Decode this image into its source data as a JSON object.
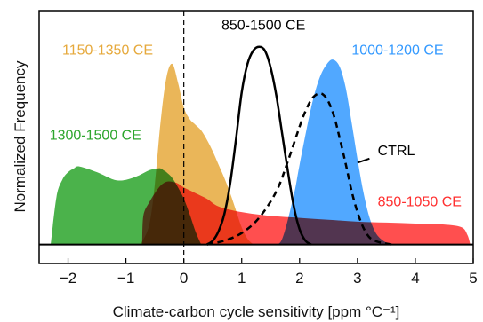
{
  "chart_data": {
    "type": "area",
    "xlabel": "Climate-carbon cycle sensitivity [ppm °C⁻¹]",
    "ylabel": "Normalized Frequency",
    "xlim": [
      -2.5,
      5
    ],
    "ylim": [
      -0.1,
      1.23
    ],
    "xticks": [
      -2,
      -1,
      0,
      1,
      2,
      3,
      4,
      5
    ],
    "xtick_labels": [
      "−2",
      "−1",
      "0",
      "1",
      "2",
      "3",
      "4",
      "5"
    ],
    "reference_lines": [
      {
        "axis": "x",
        "value": 0,
        "style": "dashed"
      },
      {
        "axis": "y",
        "value": 0,
        "style": "solid"
      }
    ],
    "grid": false,
    "series": [
      {
        "name": "1300-1500 CE",
        "style": "filled",
        "color": "#2ca52c",
        "x": [
          -2.3,
          -2.2,
          -2.1,
          -2.0,
          -1.9,
          -1.8,
          -1.5,
          -1.2,
          -1.0,
          -0.8,
          -0.6,
          -0.45,
          -0.4,
          -0.35,
          -0.3,
          -0.2,
          -0.1,
          0.0,
          0.1,
          0.2,
          0.3
        ],
        "y": [
          0.0,
          0.25,
          0.34,
          0.38,
          0.4,
          0.41,
          0.38,
          0.34,
          0.34,
          0.36,
          0.39,
          0.4,
          0.4,
          0.39,
          0.38,
          0.35,
          0.3,
          0.24,
          0.16,
          0.07,
          0.0
        ]
      },
      {
        "name": "850-1050 CE",
        "style": "filled",
        "color": "#ff3030",
        "x": [
          -0.72,
          -0.7,
          -0.6,
          -0.5,
          -0.4,
          -0.3,
          -0.2,
          -0.1,
          0.0,
          0.2,
          0.4,
          0.6,
          1.0,
          1.5,
          2.0,
          2.5,
          3.0,
          3.5,
          4.0,
          4.5,
          4.8,
          4.9,
          4.95
        ],
        "y": [
          0.0,
          0.15,
          0.22,
          0.27,
          0.31,
          0.33,
          0.33,
          0.32,
          0.3,
          0.27,
          0.24,
          0.2,
          0.17,
          0.15,
          0.14,
          0.13,
          0.12,
          0.115,
          0.11,
          0.105,
          0.09,
          0.05,
          0.0
        ]
      },
      {
        "name": "1150-1350 CE",
        "style": "filled",
        "color": "#e6a93c",
        "x": [
          -0.75,
          -0.6,
          -0.5,
          -0.4,
          -0.3,
          -0.2,
          -0.1,
          0.0,
          0.1,
          0.2,
          0.3,
          0.4,
          0.5,
          0.6,
          0.7,
          0.8,
          0.9,
          1.0,
          1.1,
          1.2
        ],
        "y": [
          0.0,
          0.1,
          0.32,
          0.65,
          0.88,
          0.95,
          0.85,
          0.72,
          0.66,
          0.63,
          0.6,
          0.55,
          0.49,
          0.42,
          0.35,
          0.27,
          0.18,
          0.09,
          0.03,
          0.0
        ]
      },
      {
        "name": "1000-1200 CE",
        "style": "filled",
        "color": "#3399ff",
        "x": [
          1.55,
          1.7,
          1.9,
          2.0,
          2.2,
          2.35,
          2.5,
          2.6,
          2.7,
          2.8,
          2.9,
          3.0,
          3.1,
          3.2,
          3.3,
          3.4,
          3.5,
          3.6
        ],
        "y": [
          0.0,
          0.03,
          0.26,
          0.42,
          0.72,
          0.88,
          0.96,
          0.97,
          0.93,
          0.82,
          0.64,
          0.45,
          0.28,
          0.15,
          0.07,
          0.03,
          0.01,
          0.0
        ]
      },
      {
        "name": "850-1500 CE",
        "style": "solid-line",
        "color": "#000000",
        "x": [
          0.4,
          0.5,
          0.6,
          0.7,
          0.8,
          0.9,
          1.0,
          1.1,
          1.2,
          1.3,
          1.4,
          1.5,
          1.6,
          1.7,
          1.8,
          1.9,
          2.0,
          2.1,
          2.2
        ],
        "y": [
          0.0,
          0.02,
          0.07,
          0.16,
          0.32,
          0.55,
          0.8,
          0.95,
          1.02,
          1.04,
          1.02,
          0.93,
          0.78,
          0.58,
          0.38,
          0.2,
          0.08,
          0.02,
          0.0
        ]
      },
      {
        "name": "CTRL",
        "style": "dashed-line",
        "color": "#000000",
        "x": [
          0.4,
          0.7,
          1.0,
          1.3,
          1.6,
          1.8,
          2.0,
          2.1,
          2.2,
          2.3,
          2.4,
          2.5,
          2.6,
          2.7,
          2.8,
          2.9,
          3.0,
          3.1,
          3.2,
          3.3,
          3.4,
          3.6
        ],
        "y": [
          0.0,
          0.02,
          0.06,
          0.14,
          0.28,
          0.44,
          0.62,
          0.7,
          0.76,
          0.79,
          0.79,
          0.75,
          0.67,
          0.55,
          0.42,
          0.28,
          0.17,
          0.09,
          0.04,
          0.02,
          0.01,
          0.0
        ]
      }
    ],
    "labels": [
      {
        "series": "1150-1350 CE",
        "text": "1150-1350 CE",
        "x": -2.1,
        "y": 1.0,
        "color": "#e6a93c"
      },
      {
        "series": "850-1500 CE",
        "text": "850-1500 CE",
        "x": 0.65,
        "y": 1.13,
        "color": "#000000"
      },
      {
        "series": "1000-1200 CE",
        "text": "1000-1200 CE",
        "x": 2.9,
        "y": 1.0,
        "color": "#3399ff"
      },
      {
        "series": "1300-1500 CE",
        "text": "1300-1500 CE",
        "x": -2.32,
        "y": 0.55,
        "color": "#2ca52c"
      },
      {
        "series": "CTRL",
        "text": "CTRL",
        "x": 3.35,
        "y": 0.47,
        "color": "#000000"
      },
      {
        "series": "850-1050 CE",
        "text": "850-1050 CE",
        "x": 3.35,
        "y": 0.2,
        "color": "#ff3030"
      }
    ],
    "ctrl_leader": {
      "from": [
        3.0,
        0.43
      ],
      "to": [
        3.3,
        0.47
      ]
    }
  }
}
